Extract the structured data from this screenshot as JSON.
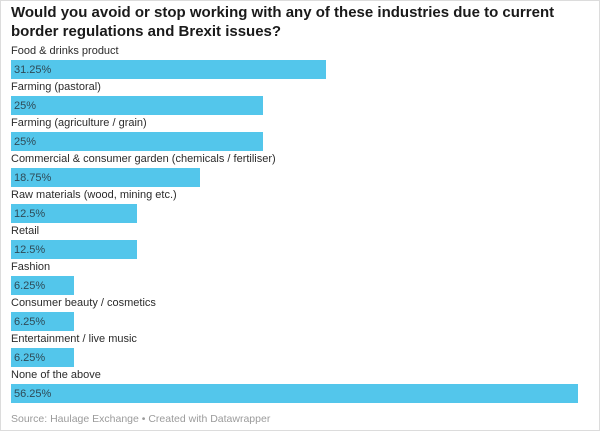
{
  "title": "Would you avoid or stop working with any of these industries due to current border regulations and Brexit issues?",
  "footer": "Source: Haulage Exchange • Created with Datawrapper",
  "colors": {
    "bar": "#53c6eb",
    "title": "#1a1a1a",
    "label": "#2b2b2b",
    "value": "#2e4a57",
    "footer": "#9b9b9b"
  },
  "chart_data": {
    "type": "bar",
    "orientation": "horizontal",
    "title": "Would you avoid or stop working with any of these industries due to current border regulations and Brexit issues?",
    "categories": [
      "Food & drinks product",
      "Farming (pastoral)",
      "Farming (agriculture / grain)",
      "Commercial & consumer garden (chemicals / fertiliser)",
      "Raw materials (wood, mining etc.)",
      "Retail",
      "Fashion",
      "Consumer beauty / cosmetics",
      "Entertainment / live music",
      "None of the above"
    ],
    "values": [
      31.25,
      25,
      25,
      18.75,
      12.5,
      12.5,
      6.25,
      6.25,
      6.25,
      56.25
    ],
    "value_labels": [
      "31.25%",
      "25%",
      "25%",
      "18.75%",
      "12.5%",
      "12.5%",
      "6.25%",
      "6.25%",
      "6.25%",
      "56.25%"
    ],
    "xlim": [
      0,
      56.25
    ],
    "legend": "none",
    "grid": "off",
    "source_note": "Source: Haulage Exchange • Created with Datawrapper"
  }
}
